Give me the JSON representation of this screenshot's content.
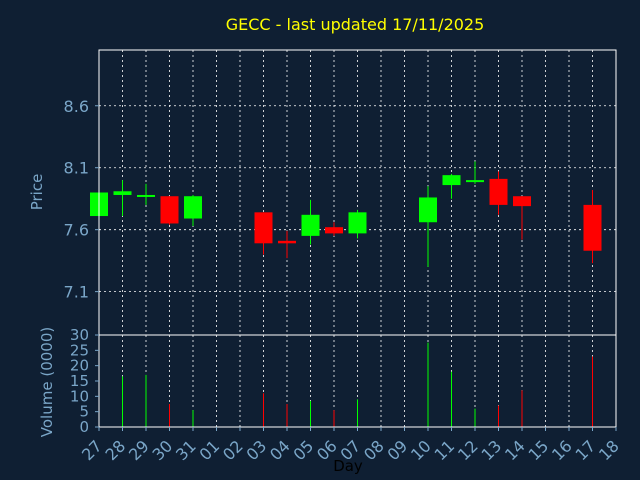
{
  "chart_data": {
    "type": "candlestick",
    "title": "GECC - last updated 17/11/2025",
    "xlabel": "Day",
    "price_axis": {
      "label": "Price",
      "ylim": [
        6.75,
        9.05
      ],
      "ticks": [
        "7.1",
        "7.6",
        "8.1",
        "8.6"
      ]
    },
    "volume_axis": {
      "label": "Volume (0000)",
      "ylim": [
        0,
        30
      ],
      "ticks": [
        "0",
        "5",
        "10",
        "15",
        "20",
        "25",
        "30"
      ]
    },
    "categories": [
      "27",
      "28",
      "29",
      "30",
      "31",
      "01",
      "02",
      "03",
      "04",
      "05",
      "06",
      "07",
      "08",
      "09",
      "10",
      "11",
      "12",
      "13",
      "14",
      "15",
      "16",
      "17",
      "18"
    ],
    "grid": true,
    "colors": {
      "background": "#0f1f33",
      "up": "#00ff00",
      "down": "#ff0000",
      "title": "#ffff00",
      "axis": "#7aa6c8"
    },
    "candles": [
      {
        "day": "27",
        "open": 7.71,
        "high": 7.9,
        "low": 7.71,
        "close": 7.9
      },
      {
        "day": "28",
        "open": 7.88,
        "high": 8.0,
        "low": 7.71,
        "close": 7.91
      },
      {
        "day": "29",
        "open": 7.87,
        "high": 7.97,
        "low": 7.8,
        "close": 7.88
      },
      {
        "day": "30",
        "open": 7.87,
        "high": 7.87,
        "low": 7.64,
        "close": 7.65
      },
      {
        "day": "31",
        "open": 7.69,
        "high": 7.88,
        "low": 7.63,
        "close": 7.87
      },
      {
        "day": "03",
        "open": 7.74,
        "high": 7.74,
        "low": 7.4,
        "close": 7.49
      },
      {
        "day": "04",
        "open": 7.51,
        "high": 7.59,
        "low": 7.37,
        "close": 7.49
      },
      {
        "day": "05",
        "open": 7.55,
        "high": 7.84,
        "low": 7.48,
        "close": 7.72
      },
      {
        "day": "06",
        "open": 7.62,
        "high": 7.66,
        "low": 7.55,
        "close": 7.57
      },
      {
        "day": "07",
        "open": 7.57,
        "high": 7.76,
        "low": 7.53,
        "close": 7.74
      },
      {
        "day": "10",
        "open": 7.66,
        "high": 7.95,
        "low": 7.3,
        "close": 7.86
      },
      {
        "day": "11",
        "open": 7.96,
        "high": 8.05,
        "low": 7.85,
        "close": 8.04
      },
      {
        "day": "12",
        "open": 7.99,
        "high": 8.15,
        "low": 7.97,
        "close": 8.0
      },
      {
        "day": "13",
        "open": 8.01,
        "high": 8.07,
        "low": 7.72,
        "close": 7.8
      },
      {
        "day": "14",
        "open": 7.87,
        "high": 7.87,
        "low": 7.52,
        "close": 7.79
      },
      {
        "day": "17",
        "open": 7.8,
        "high": 7.92,
        "low": 7.33,
        "close": 7.43
      }
    ],
    "volume": [
      {
        "day": "27",
        "value": 0,
        "dir": "up"
      },
      {
        "day": "28",
        "value": 16.5,
        "dir": "up"
      },
      {
        "day": "29",
        "value": 17.0,
        "dir": "up"
      },
      {
        "day": "30",
        "value": 7.5,
        "dir": "down"
      },
      {
        "day": "31",
        "value": 5.5,
        "dir": "up"
      },
      {
        "day": "03",
        "value": 11.0,
        "dir": "down"
      },
      {
        "day": "04",
        "value": 7.5,
        "dir": "down"
      },
      {
        "day": "05",
        "value": 8.5,
        "dir": "up"
      },
      {
        "day": "06",
        "value": 5.5,
        "dir": "down"
      },
      {
        "day": "07",
        "value": 9.0,
        "dir": "up"
      },
      {
        "day": "10",
        "value": 27.5,
        "dir": "up"
      },
      {
        "day": "11",
        "value": 18.0,
        "dir": "up"
      },
      {
        "day": "12",
        "value": 6.0,
        "dir": "up"
      },
      {
        "day": "13",
        "value": 7.0,
        "dir": "down"
      },
      {
        "day": "14",
        "value": 12.0,
        "dir": "down"
      },
      {
        "day": "17",
        "value": 23.0,
        "dir": "down"
      }
    ]
  }
}
